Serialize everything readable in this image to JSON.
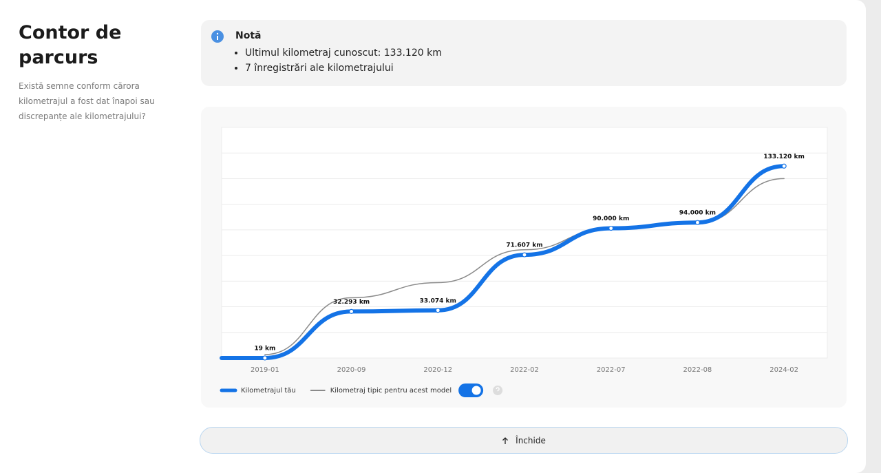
{
  "header": {
    "title": "Contor de parcurs",
    "description": "Există semne conform cărora kilometrajul a fost dat înapoi sau discrepanțe ale kilometrajului?"
  },
  "note": {
    "title": "Notă",
    "items": [
      "Ultimul kilometraj cunoscut: 133.120 km",
      "7 înregistrări ale kilometrajului"
    ]
  },
  "chart_data": {
    "type": "line",
    "categories": [
      "2019-01",
      "2020-09",
      "2020-12",
      "2022-02",
      "2022-07",
      "2022-08",
      "2024-02"
    ],
    "series": [
      {
        "name": "Kilometrajul tău",
        "color": "#1473e6",
        "line_width": 6,
        "values": [
          19,
          32293,
          33074,
          71607,
          90000,
          94000,
          133120
        ],
        "value_labels": [
          "19 km",
          "32.293 km",
          "33.074 km",
          "71.607 km",
          "90.000 km",
          "94.000 km",
          "133.120 km"
        ]
      },
      {
        "name": "Kilometraj tipic pentru acest model",
        "color": "#8a8a8a",
        "line_width": 1.5,
        "values": [
          2400,
          41800,
          52300,
          75100,
          90300,
          93600,
          124500
        ]
      }
    ],
    "ylim": [
      0,
      160000
    ],
    "grid": true
  },
  "toggle": {
    "on": true
  },
  "button": {
    "label": "Închide"
  }
}
